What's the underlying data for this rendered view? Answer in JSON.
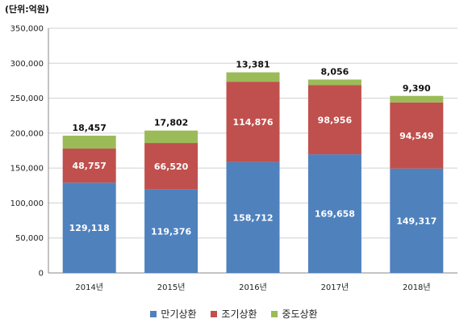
{
  "chart_data": {
    "type": "bar",
    "stacked": true,
    "unit_label": "(단위:억원)",
    "categories": [
      "2014년",
      "2015년",
      "2016년",
      "2017년",
      "2018년"
    ],
    "series": [
      {
        "name": "만기상환",
        "color": "#4f81bd",
        "values": [
          129118,
          119376,
          158712,
          169658,
          149317
        ],
        "labels": [
          "129,118",
          "119,376",
          "158,712",
          "169,658",
          "149,317"
        ]
      },
      {
        "name": "조기상환",
        "color": "#c0504d",
        "values": [
          48757,
          66520,
          114876,
          98956,
          94549
        ],
        "labels": [
          "48,757",
          "66,520",
          "114,876",
          "98,956",
          "94,549"
        ]
      },
      {
        "name": "중도상환",
        "color": "#9bbb59",
        "values": [
          18457,
          17802,
          13381,
          8056,
          9390
        ],
        "labels": [
          "18,457",
          "17,802",
          "13,381",
          "8,056",
          "9,390"
        ]
      }
    ],
    "ylim": [
      0,
      350000
    ],
    "yticks": [
      0,
      50000,
      100000,
      150000,
      200000,
      250000,
      300000,
      350000
    ],
    "ytick_labels": [
      "0",
      "50,000",
      "100,000",
      "150,000",
      "200,000",
      "250,000",
      "300,000",
      "350,000"
    ],
    "grid": true,
    "legend_position": "bottom"
  }
}
